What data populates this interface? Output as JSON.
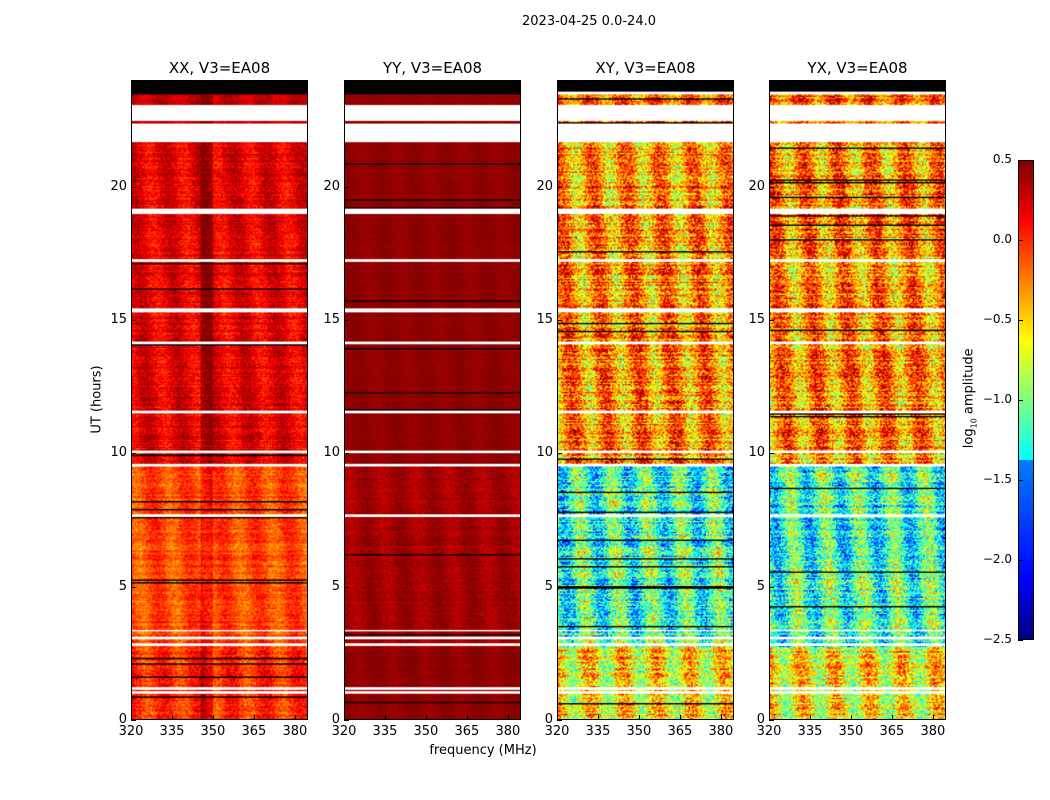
{
  "chart_data": {
    "type": "heatmap",
    "title": "2023-04-25 0.0-24.0",
    "xlabel": "frequency (MHz)",
    "ylabel": "UT (hours)",
    "xlim": [
      320,
      384.8
    ],
    "ylim": [
      0,
      24
    ],
    "xticks": [
      "320",
      "335",
      "350",
      "365",
      "380"
    ],
    "xtick_values": [
      320,
      335,
      350,
      365,
      380
    ],
    "yticks": [
      "0",
      "5",
      "10",
      "15",
      "20"
    ],
    "ytick_values": [
      0,
      5,
      10,
      15,
      20
    ],
    "colorbar": {
      "label": "log10 amplitude",
      "label_main": "log",
      "label_sub": "10",
      "label_rest": " amplitude",
      "range": [
        -2.5,
        0.5
      ],
      "ticks": [
        "0.5",
        "0.0",
        "−0.5",
        "−1.0",
        "−1.5",
        "−2.0",
        "−2.5"
      ],
      "tick_values": [
        0.5,
        0.0,
        -0.5,
        -1.0,
        -1.5,
        -2.0,
        -2.5
      ],
      "colormap": "jet"
    },
    "panels": [
      {
        "title": "XX, V3=EA08",
        "segments": [
          {
            "from": 0,
            "to": 2.7,
            "mean": 0.0,
            "spread": 0.35
          },
          {
            "from": 2.7,
            "to": 9.5,
            "mean": -0.1,
            "spread": 0.3
          },
          {
            "from": 9.5,
            "to": 21.7,
            "mean": 0.2,
            "spread": 0.3
          },
          {
            "from": 22.4,
            "to": 23.5,
            "mean": 0.3,
            "spread": 0.2
          }
        ]
      },
      {
        "title": "YY, V3=EA08",
        "segments": [
          {
            "from": 0,
            "to": 2.7,
            "mean": 0.45,
            "spread": 0.08
          },
          {
            "from": 2.7,
            "to": 9.5,
            "mean": 0.4,
            "spread": 0.15
          },
          {
            "from": 9.5,
            "to": 21.7,
            "mean": 0.45,
            "spread": 0.06
          },
          {
            "from": 22.4,
            "to": 23.5,
            "mean": 0.45,
            "spread": 0.04
          }
        ]
      },
      {
        "title": "XY, V3=EA08",
        "segments": [
          {
            "from": 0,
            "to": 2.7,
            "mean": -0.6,
            "spread": 0.8
          },
          {
            "from": 2.7,
            "to": 9.5,
            "mean": -1.2,
            "spread": 0.9
          },
          {
            "from": 9.5,
            "to": 21.7,
            "mean": -0.3,
            "spread": 0.8
          },
          {
            "from": 22.4,
            "to": 23.5,
            "mean": -0.2,
            "spread": 0.7
          }
        ]
      },
      {
        "title": "YX, V3=EA08",
        "segments": [
          {
            "from": 0,
            "to": 2.7,
            "mean": -0.6,
            "spread": 0.8
          },
          {
            "from": 2.7,
            "to": 9.5,
            "mean": -1.2,
            "spread": 0.9
          },
          {
            "from": 9.5,
            "to": 21.7,
            "mean": -0.3,
            "spread": 0.8
          },
          {
            "from": 22.4,
            "to": 23.5,
            "mean": -0.2,
            "spread": 0.7
          }
        ]
      }
    ],
    "flagged_hours": [
      [
        0.95,
        1.05
      ],
      [
        1.1,
        1.2
      ],
      [
        2.75,
        2.85
      ],
      [
        3.0,
        3.1
      ],
      [
        3.3,
        3.35
      ],
      [
        7.6,
        7.7
      ],
      [
        9.5,
        9.6
      ],
      [
        10.0,
        10.1
      ],
      [
        11.5,
        11.6
      ],
      [
        14.1,
        14.2
      ],
      [
        15.3,
        15.45
      ],
      [
        17.2,
        17.3
      ],
      [
        19.0,
        19.2
      ],
      [
        21.7,
        22.4
      ],
      [
        22.5,
        23.1
      ]
    ],
    "no_data_hours": [
      [
        23.5,
        24.0
      ]
    ]
  }
}
